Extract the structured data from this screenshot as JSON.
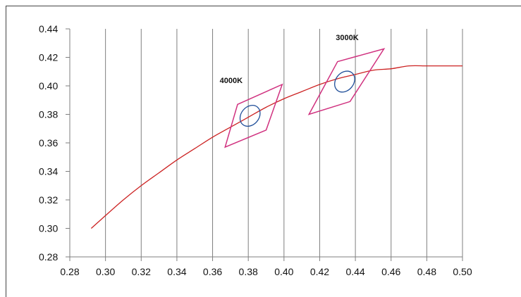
{
  "chart_data": {
    "type": "line",
    "title": "",
    "xlabel": "",
    "ylabel": "",
    "xlim": [
      0.28,
      0.5
    ],
    "ylim": [
      0.28,
      0.44
    ],
    "x_ticks": [
      "0.28",
      "0.30",
      "0.32",
      "0.34",
      "0.36",
      "0.38",
      "0.40",
      "0.42",
      "0.44",
      "0.46",
      "0.48",
      "0.50"
    ],
    "y_ticks": [
      "0.28",
      "0.30",
      "0.32",
      "0.34",
      "0.36",
      "0.38",
      "0.40",
      "0.42",
      "0.44"
    ],
    "grid": {
      "vertical": true,
      "horizontal": false
    },
    "legend": "none",
    "series": [
      {
        "role": "curve",
        "color": "#cc2222",
        "points": [
          [
            0.292,
            0.3
          ],
          [
            0.3,
            0.309
          ],
          [
            0.31,
            0.32
          ],
          [
            0.32,
            0.33
          ],
          [
            0.33,
            0.339
          ],
          [
            0.34,
            0.348
          ],
          [
            0.35,
            0.356
          ],
          [
            0.36,
            0.364
          ],
          [
            0.37,
            0.371
          ],
          [
            0.38,
            0.378
          ],
          [
            0.39,
            0.385
          ],
          [
            0.4,
            0.391
          ],
          [
            0.41,
            0.396
          ],
          [
            0.42,
            0.401
          ],
          [
            0.43,
            0.405
          ],
          [
            0.44,
            0.408
          ],
          [
            0.45,
            0.411
          ],
          [
            0.46,
            0.412
          ],
          [
            0.47,
            0.414
          ],
          [
            0.48,
            0.414
          ],
          [
            0.49,
            0.414
          ],
          [
            0.5,
            0.414
          ]
        ]
      },
      {
        "role": "quadrangle",
        "color": "#d0317f",
        "points": [
          [
            0.374,
            0.387
          ],
          [
            0.399,
            0.401
          ],
          [
            0.39,
            0.369
          ],
          [
            0.367,
            0.357
          ]
        ]
      },
      {
        "role": "ellipse",
        "color": "#1f4e99",
        "center": [
          0.381,
          0.379
        ],
        "radii": [
          0.005,
          0.008
        ],
        "angle": 40
      },
      {
        "role": "quadrangle",
        "color": "#d0317f",
        "points": [
          [
            0.43,
            0.417
          ],
          [
            0.456,
            0.426
          ],
          [
            0.437,
            0.389
          ],
          [
            0.414,
            0.38
          ]
        ]
      },
      {
        "role": "ellipse",
        "color": "#1f4e99",
        "center": [
          0.434,
          0.403
        ],
        "radii": [
          0.005,
          0.008
        ],
        "angle": 40
      }
    ],
    "annotations": [
      {
        "id": "4000k",
        "text": "4000K",
        "x": 0.364,
        "y": 0.402
      },
      {
        "id": "3000k",
        "text": "3000K",
        "x": 0.429,
        "y": 0.432
      }
    ]
  }
}
